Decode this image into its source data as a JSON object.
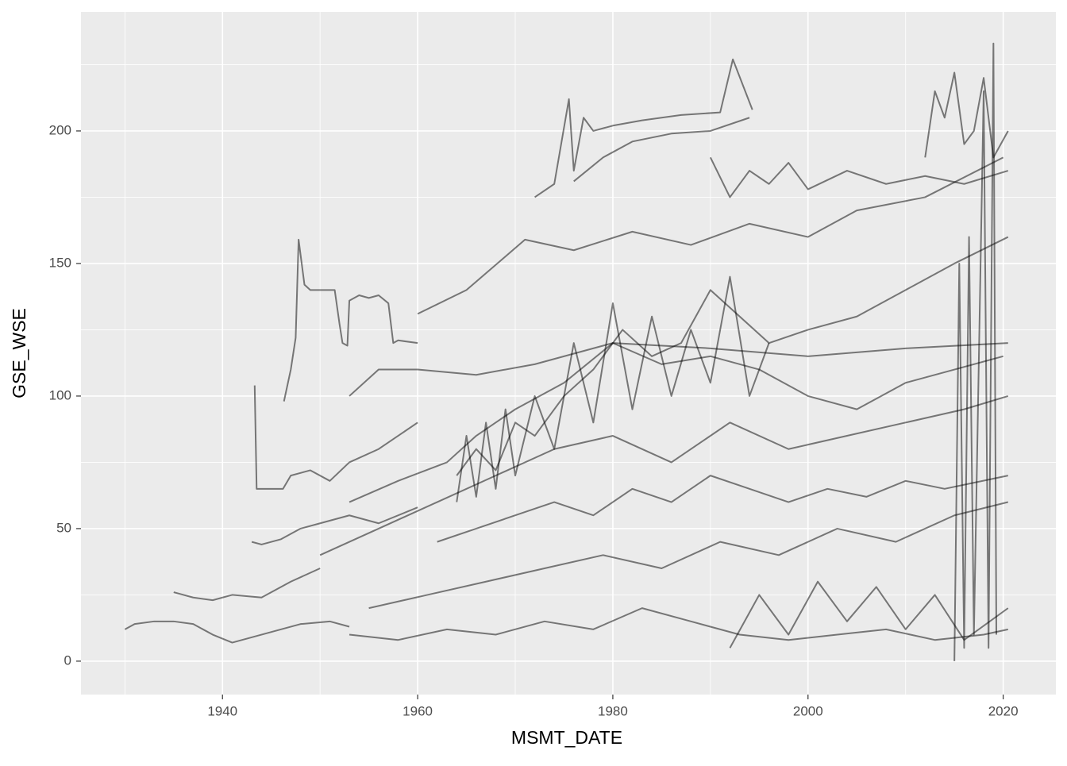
{
  "chart_data": {
    "type": "line",
    "x_label": "MSMT_DATE",
    "y_label": "GSE_WSE",
    "xlim": [
      1925.5,
      2025.4
    ],
    "ylim": [
      -12.6,
      244.9
    ],
    "xticks": [
      1940,
      1960,
      1980,
      2000,
      2020
    ],
    "yticks": [
      0,
      50,
      100,
      150,
      200
    ],
    "grid": true,
    "color": "rgba(0,0,0,0.5)",
    "series": [
      {
        "x": [
          1930,
          1931,
          1933,
          1935,
          1937,
          1939,
          1941,
          1945,
          1948,
          1951,
          1953
        ],
        "values": [
          12,
          14,
          15,
          15,
          14,
          10,
          7,
          11,
          14,
          15,
          13
        ]
      },
      {
        "x": [
          1935,
          1937,
          1939,
          1941,
          1944,
          1947,
          1950
        ],
        "values": [
          26,
          24,
          23,
          25,
          24,
          30,
          35
        ]
      },
      {
        "x": [
          1943.3,
          1943.5,
          1946.2,
          1947,
          1949,
          1951,
          1953,
          1956,
          1960
        ],
        "values": [
          104,
          65,
          65,
          70,
          72,
          68,
          75,
          80,
          90
        ]
      },
      {
        "x": [
          1946.3,
          1947,
          1947.5,
          1947.8,
          1948.4,
          1949,
          1950,
          1951.5,
          1952,
          1952.3,
          1952.8,
          1953,
          1954,
          1955,
          1956,
          1957,
          1957.5,
          1958,
          1960
        ],
        "values": [
          98,
          110,
          122,
          159,
          142,
          140,
          140,
          140,
          127,
          120,
          119,
          136,
          138,
          137,
          138,
          135,
          120,
          121,
          120
        ]
      },
      {
        "x": [
          1972,
          1974,
          1975.5,
          1976,
          1977,
          1978,
          1980,
          1983,
          1987,
          1991,
          1992.3,
          1994.3
        ],
        "values": [
          175,
          180,
          212,
          185,
          205,
          200,
          202,
          204,
          206,
          207,
          227,
          208
        ]
      },
      {
        "x": [
          1976,
          1979,
          1982,
          1986,
          1990,
          1994
        ],
        "values": [
          181,
          190,
          196,
          199,
          200,
          205
        ]
      },
      {
        "x": [
          1960,
          1965,
          1971,
          1976,
          1982,
          1988,
          1994,
          2000,
          2005,
          2012,
          2020
        ],
        "values": [
          131,
          140,
          159,
          155,
          162,
          157,
          165,
          160,
          170,
          175,
          190
        ]
      },
      {
        "x": [
          2012,
          2013,
          2014,
          2015,
          2016,
          2017,
          2018,
          2019,
          2020.5
        ],
        "values": [
          190,
          215,
          205,
          222,
          195,
          200,
          220,
          190,
          200
        ]
      },
      {
        "x": [
          1953,
          1958,
          1963,
          1966,
          1970,
          1975,
          1980,
          1985,
          1990,
          1995,
          2000,
          2005,
          2010,
          2015,
          2020
        ],
        "values": [
          60,
          68,
          75,
          85,
          95,
          105,
          120,
          112,
          115,
          110,
          100,
          95,
          105,
          110,
          115
        ]
      },
      {
        "x": [
          1953,
          1958,
          1963,
          1968,
          1973,
          1978,
          1983,
          1988,
          1993,
          1998,
          2003,
          2008,
          2013,
          2018,
          2020.5
        ],
        "values": [
          10,
          8,
          12,
          10,
          15,
          12,
          20,
          15,
          10,
          8,
          10,
          12,
          8,
          10,
          12
        ]
      },
      {
        "x": [
          1950,
          1956,
          1962,
          1968,
          1974,
          1980,
          1986,
          1992,
          1998,
          2004,
          2010,
          2016,
          2020.5
        ],
        "values": [
          40,
          50,
          60,
          70,
          80,
          85,
          75,
          90,
          80,
          85,
          90,
          95,
          100
        ]
      },
      {
        "x": [
          1955,
          1961,
          1967,
          1973,
          1979,
          1985,
          1991,
          1997,
          2003,
          2009,
          2015,
          2020.5
        ],
        "values": [
          20,
          25,
          30,
          35,
          40,
          35,
          45,
          40,
          50,
          45,
          55,
          60
        ]
      },
      {
        "x": [
          1964,
          1966,
          1968,
          1970,
          1972,
          1975,
          1978,
          1981,
          1984,
          1987,
          1990,
          1993,
          1996,
          2000,
          2005,
          2010,
          2015,
          2020.5
        ],
        "values": [
          70,
          80,
          72,
          90,
          85,
          100,
          110,
          125,
          115,
          120,
          140,
          130,
          120,
          125,
          130,
          140,
          150,
          160
        ]
      },
      {
        "x": [
          1962,
          1966,
          1970,
          1974,
          1978,
          1982,
          1986,
          1990,
          1994,
          1998,
          2002,
          2006,
          2010,
          2014,
          2020.5
        ],
        "values": [
          45,
          50,
          55,
          60,
          55,
          65,
          60,
          70,
          65,
          60,
          65,
          62,
          68,
          65,
          70
        ]
      },
      {
        "x": [
          1964,
          1965,
          1966,
          1967,
          1968,
          1969,
          1970,
          1972,
          1974,
          1976,
          1978,
          1980,
          1982,
          1984,
          1986,
          1988,
          1990,
          1992,
          1994,
          1996
        ],
        "values": [
          60,
          85,
          62,
          90,
          65,
          95,
          70,
          100,
          80,
          120,
          90,
          135,
          95,
          130,
          100,
          125,
          105,
          145,
          100,
          120
        ]
      },
      {
        "x": [
          2015,
          2015.5,
          2016,
          2016.5,
          2017,
          2018,
          2018.5,
          2019,
          2019.3
        ],
        "values": [
          0,
          150,
          5,
          160,
          10,
          215,
          5,
          233,
          10
        ]
      },
      {
        "x": [
          1953,
          1956,
          1960,
          1966,
          1972,
          1980,
          1990,
          2000,
          2010,
          2020.5
        ],
        "values": [
          100,
          110,
          110,
          108,
          112,
          120,
          118,
          115,
          118,
          120
        ]
      },
      {
        "x": [
          1990,
          1992,
          1994,
          1996,
          1998,
          2000,
          2004,
          2008,
          2012,
          2016,
          2020.5
        ],
        "values": [
          190,
          175,
          185,
          180,
          188,
          178,
          185,
          180,
          183,
          180,
          185
        ]
      },
      {
        "x": [
          1943,
          1944,
          1946,
          1948,
          1950,
          1953,
          1956,
          1960
        ],
        "values": [
          45,
          44,
          46,
          50,
          52,
          55,
          52,
          58
        ]
      },
      {
        "x": [
          1992,
          1995,
          1998,
          2001,
          2004,
          2007,
          2010,
          2013,
          2016,
          2020.5
        ],
        "values": [
          5,
          25,
          10,
          30,
          15,
          28,
          12,
          25,
          8,
          20
        ]
      }
    ]
  }
}
